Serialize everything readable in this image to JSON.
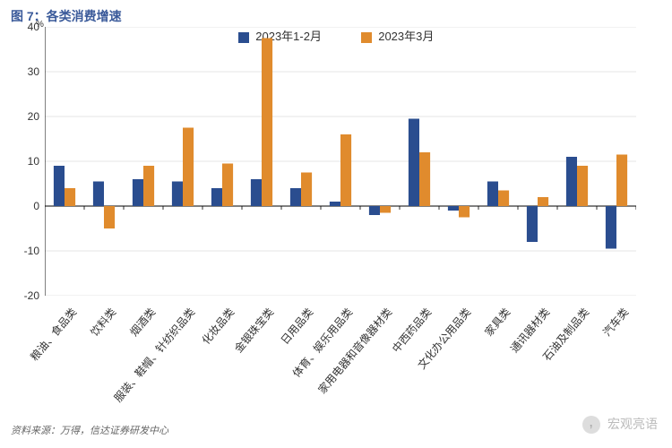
{
  "title": "图 7：各类消费增速",
  "footer": "资料来源：万得，信达证券研发中心",
  "watermark": "宏观亮语",
  "y_percent_label": "%",
  "chart": {
    "type": "bar",
    "series": [
      {
        "name": "2023年1-2月",
        "color": "#2a4d8f"
      },
      {
        "name": "2023年3月",
        "color": "#e08b2d"
      }
    ],
    "categories": [
      "粮油、食品类",
      "饮料类",
      "烟酒类",
      "服装、鞋帽、针纺织品类",
      "化妆品类",
      "金银珠宝类",
      "日用品类",
      "体育、娱乐用品类",
      "家用电器和音像器材类",
      "中西药品类",
      "文化办公用品类",
      "家具类",
      "通讯器材类",
      "石油及制品类",
      "汽车类"
    ],
    "values_s1": [
      9,
      5.5,
      6,
      5.5,
      4,
      6,
      4,
      1,
      -2,
      19.5,
      -1,
      5.5,
      -8,
      11,
      -9.5
    ],
    "values_s2": [
      4,
      -5,
      9,
      17.5,
      9.5,
      37.5,
      7.5,
      16,
      -1.5,
      12,
      -2.5,
      3.5,
      2,
      9,
      11.5
    ],
    "ylim": [
      -20,
      40
    ],
    "ytick_step": 10,
    "axis_color": "#000000",
    "grid_color": "#cccccc",
    "background_color": "#ffffff",
    "bar_group_width": 0.55,
    "title_fontsize": 14,
    "label_fontsize": 12
  }
}
